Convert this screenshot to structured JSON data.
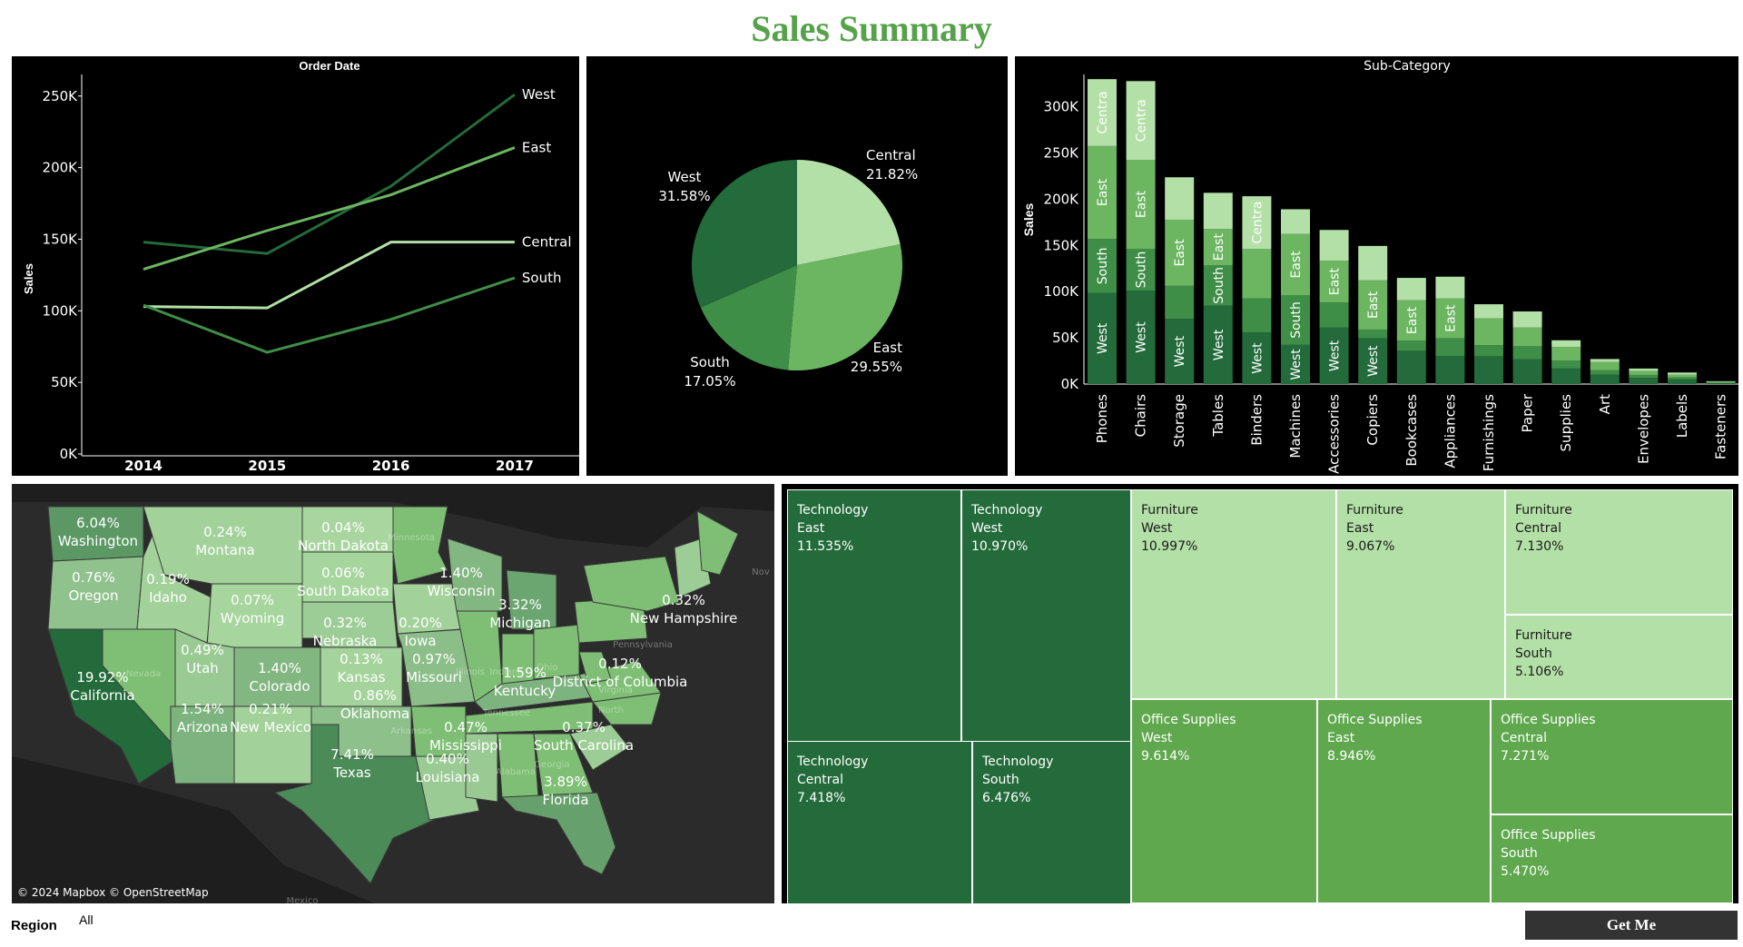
{
  "title": "Sales Summary",
  "colors": {
    "title": "#55a24a",
    "West": "#236b3a",
    "South": "#3f8e47",
    "East": "#6cb662",
    "Central": "#b3e0a6",
    "cat_Technology": "#236b3a",
    "cat_Furniture": "#b3e0a6",
    "cat_Office_Supplies": "#5fa84e"
  },
  "chart_data": [
    {
      "id": "line",
      "type": "line",
      "title": "Order Date",
      "xlabel": "Order Date",
      "ylabel": "Sales",
      "x": [
        "2014",
        "2015",
        "2016",
        "2017"
      ],
      "yticks": [
        "0K",
        "50K",
        "100K",
        "150K",
        "200K",
        "250K"
      ],
      "ylim": [
        0,
        260000
      ],
      "grid": false,
      "series": [
        {
          "name": "West",
          "values": [
            148000,
            140000,
            187000,
            251000
          ]
        },
        {
          "name": "East",
          "values": [
            129000,
            156000,
            181000,
            214000
          ]
        },
        {
          "name": "Central",
          "values": [
            103000,
            102000,
            148000,
            148000
          ]
        },
        {
          "name": "South",
          "values": [
            104000,
            71000,
            94000,
            123000
          ]
        }
      ]
    },
    {
      "id": "pie",
      "type": "pie",
      "slices": [
        {
          "name": "Central",
          "value": 21.82,
          "label": "21.82%"
        },
        {
          "name": "East",
          "value": 29.55,
          "label": "29.55%"
        },
        {
          "name": "South",
          "value": 17.05,
          "label": "17.05%"
        },
        {
          "name": "West",
          "value": 31.58,
          "label": "31.58%"
        }
      ]
    },
    {
      "id": "bar",
      "type": "bar",
      "stacked": true,
      "title": "Sub-Category",
      "ylabel": "Sales",
      "yticks": [
        "0K",
        "50K",
        "100K",
        "150K",
        "200K",
        "250K",
        "300K"
      ],
      "ylim": [
        0,
        340000
      ],
      "categories": [
        "Phones",
        "Chairs",
        "Storage",
        "Tables",
        "Binders",
        "Machines",
        "Accessories",
        "Copiers",
        "Bookcases",
        "Appliances",
        "Furnishings",
        "Paper",
        "Supplies",
        "Art",
        "Envelopes",
        "Labels",
        "Fasteners"
      ],
      "series": [
        {
          "name": "West",
          "values": [
            98700,
            101200,
            70500,
            84800,
            55900,
            42400,
            61100,
            49700,
            36000,
            30200,
            30100,
            26700,
            17200,
            10200,
            6600,
            5100,
            920
          ]
        },
        {
          "name": "South",
          "values": [
            58300,
            45200,
            35800,
            43900,
            37000,
            53900,
            27300,
            9300,
            10900,
            19500,
            11900,
            14200,
            8300,
            4700,
            3300,
            2300,
            500
          ]
        },
        {
          "name": "East",
          "values": [
            100600,
            96300,
            71600,
            39100,
            53500,
            66100,
            45000,
            53200,
            43800,
            42900,
            29100,
            20200,
            14800,
            8900,
            4400,
            2600,
            900
          ]
        },
        {
          "name": "Central",
          "values": [
            72400,
            85200,
            45900,
            39200,
            56900,
            26800,
            33400,
            37300,
            24200,
            23600,
            15300,
            17500,
            7100,
            3300,
            2500,
            2500,
            780
          ]
        }
      ],
      "segment_labels": [
        [
          "West",
          "South",
          "East",
          "Centra"
        ],
        [
          "West",
          "South",
          "East",
          "Centra"
        ],
        [
          "West",
          "",
          "East",
          ""
        ],
        [
          "West",
          "South",
          "East",
          ""
        ],
        [
          "West",
          "",
          "",
          "Centra"
        ],
        [
          "West",
          "South",
          "East",
          ""
        ],
        [
          "West",
          "",
          "East",
          ""
        ],
        [
          "West",
          "",
          "East",
          ""
        ],
        [
          "",
          "",
          "East",
          ""
        ],
        [
          "",
          "",
          "East",
          ""
        ]
      ]
    }
  ],
  "map": {
    "credit": "© 2024 Mapbox © OpenStreetMap",
    "basemap_labels": [
      "Mexico",
      "Minnesota",
      "Nevada",
      "Pennsylvania",
      "Tennessee",
      "North",
      "Georgia",
      "Illinois",
      "Indiana",
      "Ohio",
      "Arkansas",
      "Alabama",
      "Virginia",
      "Nov"
    ],
    "states": [
      {
        "name": "Washington",
        "pct": "6.04%",
        "level": 0.35
      },
      {
        "name": "Oregon",
        "pct": "0.76%",
        "level": 0.12
      },
      {
        "name": "California",
        "pct": "19.92%",
        "level": 1.0
      },
      {
        "name": "Montana",
        "pct": "0.24%",
        "level": 0.04
      },
      {
        "name": "Idaho",
        "pct": "0.19%",
        "level": 0.04
      },
      {
        "name": "Wyoming",
        "pct": "0.07%",
        "level": 0.02
      },
      {
        "name": "Utah",
        "pct": "0.49%",
        "level": 0.08
      },
      {
        "name": "Colorado",
        "pct": "1.40%",
        "level": 0.18
      },
      {
        "name": "Arizona",
        "pct": "1.54%",
        "level": 0.2
      },
      {
        "name": "New Mexico",
        "pct": "0.21%",
        "level": 0.04
      },
      {
        "name": "North Dakota",
        "pct": "0.04%",
        "level": 0.01
      },
      {
        "name": "South Dakota",
        "pct": "0.06%",
        "level": 0.02
      },
      {
        "name": "Nebraska",
        "pct": "0.32%",
        "level": 0.06
      },
      {
        "name": "Kansas",
        "pct": "0.13%",
        "level": 0.03
      },
      {
        "name": "Oklahoma",
        "pct": "0.86%",
        "level": 0.13
      },
      {
        "name": "Texas",
        "pct": "7.41%",
        "level": 0.42
      },
      {
        "name": "Wisconsin",
        "pct": "1.40%",
        "level": 0.18
      },
      {
        "name": "Iowa",
        "pct": "0.20%",
        "level": 0.04
      },
      {
        "name": "Missouri",
        "pct": "0.97%",
        "level": 0.14
      },
      {
        "name": "Michigan",
        "pct": "3.32%",
        "level": 0.28
      },
      {
        "name": "Kentucky",
        "pct": "1.59%",
        "level": 0.2
      },
      {
        "name": "Mississippi",
        "pct": "0.47%",
        "level": 0.08
      },
      {
        "name": "Louisiana",
        "pct": "0.40%",
        "level": 0.07
      },
      {
        "name": "New Hampshire",
        "pct": "0.32%",
        "level": 0.06
      },
      {
        "name": "District of Columbia",
        "pct": "0.12%",
        "level": 0.03
      },
      {
        "name": "South Carolina",
        "pct": "0.37%",
        "level": 0.06
      },
      {
        "name": "Florida",
        "pct": "3.89%",
        "level": 0.3
      }
    ]
  },
  "treemap": [
    {
      "category": "Technology",
      "region": "East",
      "pct": "11.535%",
      "color_key": "cat_Technology"
    },
    {
      "category": "Technology",
      "region": "West",
      "pct": "10.970%",
      "color_key": "cat_Technology"
    },
    {
      "category": "Technology",
      "region": "Central",
      "pct": "7.418%",
      "color_key": "cat_Technology"
    },
    {
      "category": "Technology",
      "region": "South",
      "pct": "6.476%",
      "color_key": "cat_Technology"
    },
    {
      "category": "Furniture",
      "region": "West",
      "pct": "10.997%",
      "color_key": "cat_Furniture"
    },
    {
      "category": "Furniture",
      "region": "East",
      "pct": "9.067%",
      "color_key": "cat_Furniture"
    },
    {
      "category": "Furniture",
      "region": "Central",
      "pct": "7.130%",
      "color_key": "cat_Furniture"
    },
    {
      "category": "Furniture",
      "region": "South",
      "pct": "5.106%",
      "color_key": "cat_Furniture"
    },
    {
      "category": "Office Supplies",
      "region": "West",
      "pct": "9.614%",
      "color_key": "cat_Office_Supplies"
    },
    {
      "category": "Office Supplies",
      "region": "East",
      "pct": "8.946%",
      "color_key": "cat_Office_Supplies"
    },
    {
      "category": "Office Supplies",
      "region": "Central",
      "pct": "7.271%",
      "color_key": "cat_Office_Supplies"
    },
    {
      "category": "Office Supplies",
      "region": "South",
      "pct": "5.470%",
      "color_key": "cat_Office_Supplies"
    }
  ],
  "filter": {
    "label": "Region",
    "value": "All"
  },
  "button": {
    "label": "Get Me"
  }
}
